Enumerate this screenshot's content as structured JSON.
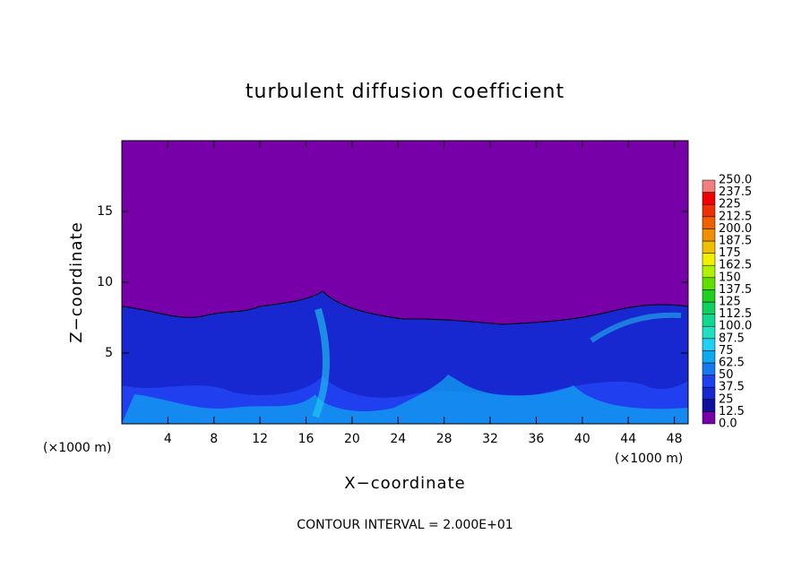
{
  "chart_data": {
    "type": "contour",
    "title": "turbulent diffusion coefficient",
    "x_label": "X−coordinate",
    "y_label": "Z−coordinate",
    "x_unit": "(×1000 m)",
    "x_unit_right": "(×1000 m)",
    "footnote": "CONTOUR INTERVAL = 2.000E+01",
    "xlim": [
      0,
      49.2
    ],
    "ylim": [
      0,
      20
    ],
    "xticks": [
      4,
      8,
      12,
      16,
      20,
      24,
      28,
      32,
      36,
      40,
      44,
      48
    ],
    "yticks": [
      5,
      10,
      15
    ],
    "colorbar": {
      "levels": [
        {
          "value": 0,
          "label": "0.0"
        },
        12.5,
        25.0,
        37.5,
        50.0,
        62.5,
        75.0,
        87.5,
        {
          "value": 100,
          "label": "100.0"
        },
        112.5,
        125.0,
        137.5,
        150.0,
        162.5,
        175.0,
        187.5,
        {
          "value": 200,
          "label": "200.0"
        },
        212.5,
        225.0,
        237.5,
        {
          "value": 250,
          "label": "250.0"
        }
      ],
      "colors": [
        "#7800a8",
        "#1010a0",
        "#1828d0",
        "#2040f0",
        "#1878f0",
        "#10a8f0",
        "#20d0f0",
        "#20e0c0",
        "#10d890",
        "#10d060",
        "#20d020",
        "#60e000",
        "#b0f000",
        "#f0f000",
        "#f0c000",
        "#f09000",
        "#f06000",
        "#f03000",
        "#f00000",
        "#f08080"
      ]
    }
  }
}
